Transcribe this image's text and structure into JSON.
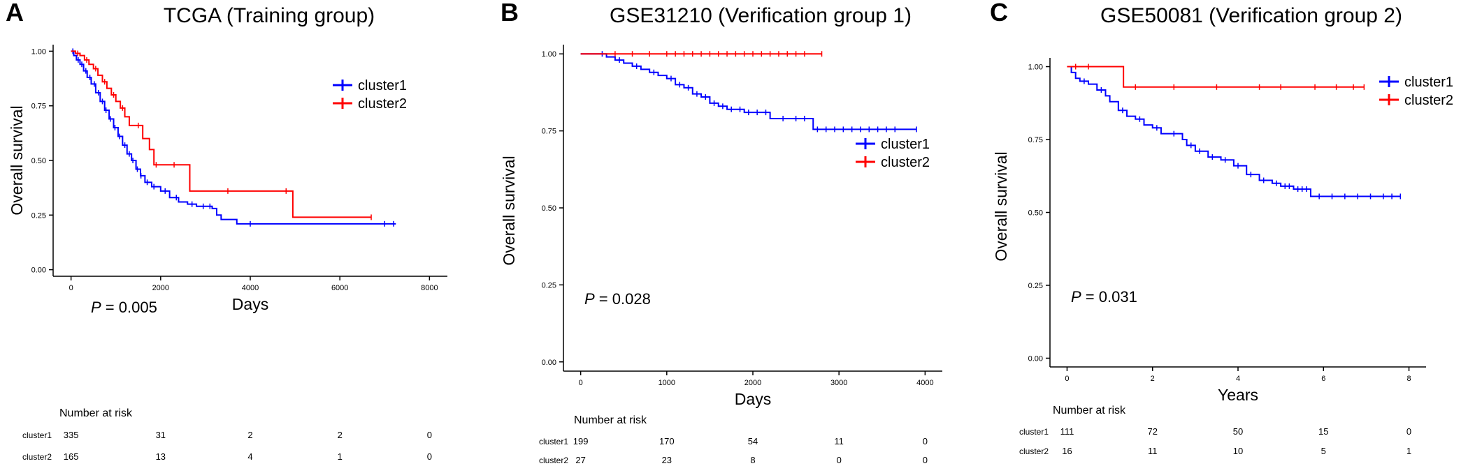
{
  "colors": {
    "cluster1": "#0000ff",
    "cluster2": "#ff0000",
    "axis": "#000000"
  },
  "chart_data": [
    {
      "panel_letter": "A",
      "title": "TCGA   (Training group)",
      "type": "line",
      "xlabel": "Days",
      "ylabel": "Overall survival",
      "xlim": [
        -400,
        8400
      ],
      "ylim": [
        -0.03,
        1.03
      ],
      "xticks": [
        0,
        2000,
        4000,
        6000,
        8000
      ],
      "yticks": [
        0.0,
        0.25,
        0.5,
        0.75,
        1.0
      ],
      "ytick_labels": [
        "0.00",
        "0.25",
        "0.50",
        "0.75",
        "1.00"
      ],
      "p_label": "P",
      "p_value": " = 0.005",
      "legend": [
        "cluster1",
        "cluster2"
      ],
      "legend_position": "top-right",
      "series": [
        {
          "name": "cluster1",
          "x": [
            0,
            60,
            120,
            200,
            280,
            360,
            450,
            550,
            650,
            750,
            850,
            950,
            1050,
            1150,
            1250,
            1350,
            1450,
            1550,
            1650,
            1800,
            2000,
            2200,
            2400,
            2600,
            2800,
            3000,
            3150,
            3250,
            3350,
            3700,
            7250
          ],
          "y": [
            1.0,
            0.98,
            0.96,
            0.94,
            0.91,
            0.88,
            0.85,
            0.81,
            0.77,
            0.73,
            0.69,
            0.65,
            0.61,
            0.57,
            0.53,
            0.5,
            0.46,
            0.43,
            0.4,
            0.38,
            0.36,
            0.33,
            0.31,
            0.3,
            0.29,
            0.29,
            0.28,
            0.25,
            0.23,
            0.21,
            0.21
          ],
          "censor_x": [
            40,
            160,
            240,
            330,
            420,
            520,
            610,
            700,
            780,
            880,
            980,
            1080,
            1200,
            1300,
            1380,
            1480,
            1560,
            1700,
            1850,
            2100,
            2350,
            2700,
            2950,
            3100,
            4000,
            7000,
            7200
          ]
        },
        {
          "name": "cluster2",
          "x": [
            0,
            100,
            200,
            300,
            400,
            500,
            600,
            700,
            800,
            900,
            1000,
            1100,
            1200,
            1300,
            1450,
            1600,
            1750,
            1850,
            2100,
            2650,
            3200,
            4000,
            4800,
            4950,
            6700
          ],
          "y": [
            1.0,
            0.99,
            0.98,
            0.96,
            0.94,
            0.92,
            0.89,
            0.86,
            0.83,
            0.8,
            0.77,
            0.74,
            0.7,
            0.66,
            0.66,
            0.6,
            0.55,
            0.48,
            0.48,
            0.36,
            0.36,
            0.36,
            0.36,
            0.24,
            0.24
          ],
          "censor_x": [
            150,
            350,
            550,
            750,
            950,
            1150,
            1500,
            1900,
            2300,
            3500,
            4800,
            6700
          ]
        }
      ],
      "risk_table": {
        "title": "Number at risk",
        "rows": [
          {
            "label": "cluster1",
            "values": [
              "335",
              "31",
              "2",
              "2",
              "0"
            ]
          },
          {
            "label": "cluster2",
            "values": [
              "165",
              "13",
              "4",
              "1",
              "0"
            ]
          }
        ]
      }
    },
    {
      "panel_letter": "B",
      "title": "GSE31210   (Verification group 1)",
      "type": "line",
      "xlabel": "Days",
      "ylabel": "Overall survival",
      "xlim": [
        -200,
        4200
      ],
      "ylim": [
        -0.03,
        1.03
      ],
      "xticks": [
        0,
        1000,
        2000,
        3000,
        4000
      ],
      "yticks": [
        0.0,
        0.25,
        0.5,
        0.75,
        1.0
      ],
      "ytick_labels": [
        "0.00",
        "0.25",
        "0.50",
        "0.75",
        "1.00"
      ],
      "p_label": "P",
      "p_value": " = 0.028",
      "legend": [
        "cluster1",
        "cluster2"
      ],
      "legend_position": "top-right",
      "series": [
        {
          "name": "cluster1",
          "x": [
            0,
            200,
            300,
            400,
            500,
            600,
            700,
            800,
            900,
            1000,
            1100,
            1200,
            1300,
            1400,
            1500,
            1600,
            1700,
            1800,
            1900,
            2000,
            2200,
            2300,
            2400,
            2650,
            2700,
            3900
          ],
          "y": [
            1.0,
            1.0,
            0.99,
            0.98,
            0.97,
            0.96,
            0.95,
            0.94,
            0.93,
            0.92,
            0.9,
            0.89,
            0.87,
            0.86,
            0.84,
            0.83,
            0.82,
            0.82,
            0.81,
            0.81,
            0.79,
            0.79,
            0.79,
            0.79,
            0.755,
            0.755
          ],
          "censor_x": [
            250,
            450,
            650,
            850,
            1050,
            1150,
            1250,
            1350,
            1450,
            1550,
            1650,
            1750,
            1850,
            1950,
            2050,
            2150,
            2350,
            2500,
            2600,
            2750,
            2850,
            2950,
            3050,
            3150,
            3250,
            3350,
            3450,
            3550,
            3650,
            3900
          ]
        },
        {
          "name": "cluster2",
          "x": [
            0,
            2800
          ],
          "y": [
            1.0,
            1.0
          ],
          "censor_x": [
            400,
            600,
            800,
            1000,
            1100,
            1200,
            1300,
            1400,
            1500,
            1600,
            1700,
            1800,
            1900,
            2000,
            2100,
            2200,
            2300,
            2400,
            2500,
            2600,
            2800
          ]
        }
      ],
      "risk_table": {
        "title": "Number at risk",
        "rows": [
          {
            "label": "cluster1",
            "values": [
              "199",
              "170",
              "54",
              "11",
              "0"
            ]
          },
          {
            "label": "cluster2",
            "values": [
              "27",
              "23",
              "8",
              "0",
              "0"
            ]
          }
        ]
      }
    },
    {
      "panel_letter": "C",
      "title": "GSE50081   (Verification group 2)",
      "type": "line",
      "xlabel": "Years",
      "ylabel": "Overall survival",
      "xlim": [
        -0.4,
        8.4
      ],
      "ylim": [
        -0.03,
        1.03
      ],
      "xticks": [
        0,
        2,
        4,
        6,
        8
      ],
      "yticks": [
        0.0,
        0.25,
        0.5,
        0.75,
        1.0
      ],
      "ytick_labels": [
        "0.00",
        "0.25",
        "0.50",
        "0.75",
        "1.00"
      ],
      "p_label": "P",
      "p_value": " = 0.031",
      "legend": [
        "cluster1",
        "cluster2"
      ],
      "legend_position": "top-right",
      "series": [
        {
          "name": "cluster1",
          "x": [
            0,
            0.1,
            0.2,
            0.3,
            0.5,
            0.7,
            0.9,
            1.0,
            1.2,
            1.4,
            1.6,
            1.8,
            2.0,
            2.2,
            2.4,
            2.7,
            2.8,
            3.0,
            3.3,
            3.6,
            3.9,
            4.2,
            4.5,
            4.8,
            5.0,
            5.3,
            5.7,
            7.8
          ],
          "y": [
            1.0,
            0.98,
            0.96,
            0.95,
            0.94,
            0.92,
            0.9,
            0.88,
            0.85,
            0.83,
            0.82,
            0.8,
            0.79,
            0.77,
            0.77,
            0.75,
            0.73,
            0.71,
            0.69,
            0.68,
            0.66,
            0.63,
            0.61,
            0.6,
            0.59,
            0.58,
            0.555,
            0.555
          ],
          "censor_x": [
            0.4,
            0.8,
            1.3,
            1.7,
            2.1,
            2.5,
            2.9,
            3.1,
            3.4,
            3.7,
            4.0,
            4.3,
            4.6,
            4.9,
            5.1,
            5.2,
            5.4,
            5.5,
            5.6,
            5.9,
            6.2,
            6.5,
            6.8,
            7.1,
            7.4,
            7.6,
            7.8
          ]
        },
        {
          "name": "cluster2",
          "x": [
            0,
            1.32,
            1.32,
            6.95
          ],
          "y": [
            1.0,
            1.0,
            0.93,
            0.93
          ],
          "censor_x": [
            0.2,
            0.5,
            1.6,
            2.5,
            3.5,
            4.5,
            5.0,
            5.8,
            6.3,
            6.7,
            6.95
          ]
        }
      ],
      "risk_table": {
        "title": "Number at risk",
        "rows": [
          {
            "label": "cluster1",
            "values": [
              "111",
              "72",
              "50",
              "15",
              "0"
            ]
          },
          {
            "label": "cluster2",
            "values": [
              "16",
              "11",
              "10",
              "5",
              "1"
            ]
          }
        ]
      }
    }
  ]
}
